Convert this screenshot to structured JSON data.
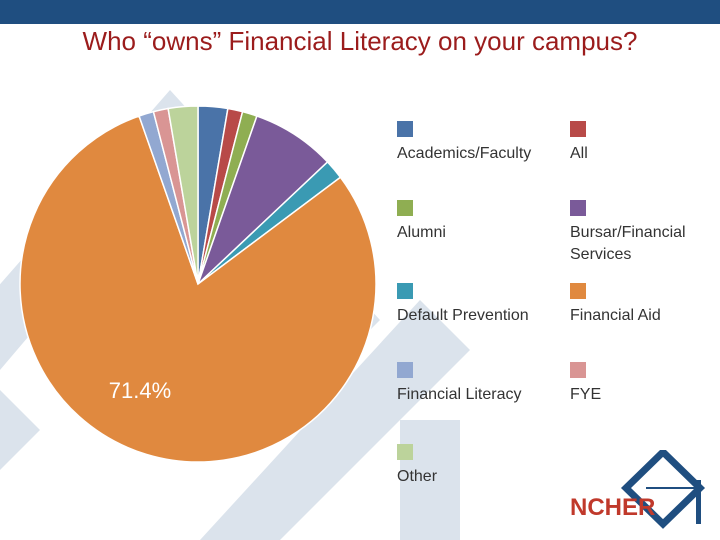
{
  "slide": {
    "title": "Who “owns” Financial Literacy on your campus?",
    "logo_text": "NCHER"
  },
  "colors": {
    "header_bar": "#1f4e80",
    "title": "#9b1c1c"
  },
  "chart_data": {
    "type": "pie",
    "title": "",
    "data_labels": [
      {
        "category": "Financial Aid",
        "text": "71.4%"
      }
    ],
    "categories": [
      "Academics/Faculty",
      "All",
      "Alumni",
      "Bursar/Financial Services",
      "Default Prevention",
      "Financial Aid",
      "Financial Literacy",
      "FYE",
      "Other"
    ],
    "values": [
      2.4,
      1.2,
      1.2,
      6.8,
      1.6,
      71.4,
      1.2,
      1.2,
      2.4
    ],
    "colors": [
      "#4a73a8",
      "#b84a48",
      "#8fae52",
      "#7a5a99",
      "#3a9ab3",
      "#e0893f",
      "#92a8d1",
      "#d99594",
      "#bcd39b"
    ],
    "legend": {
      "placement": "right",
      "entries": [
        "Academics/Faculty",
        "All",
        "Alumni",
        "Bursar/Financial Services",
        "Default Prevention",
        "Financial Aid",
        "Financial Literacy",
        "FYE",
        "Other"
      ]
    }
  }
}
